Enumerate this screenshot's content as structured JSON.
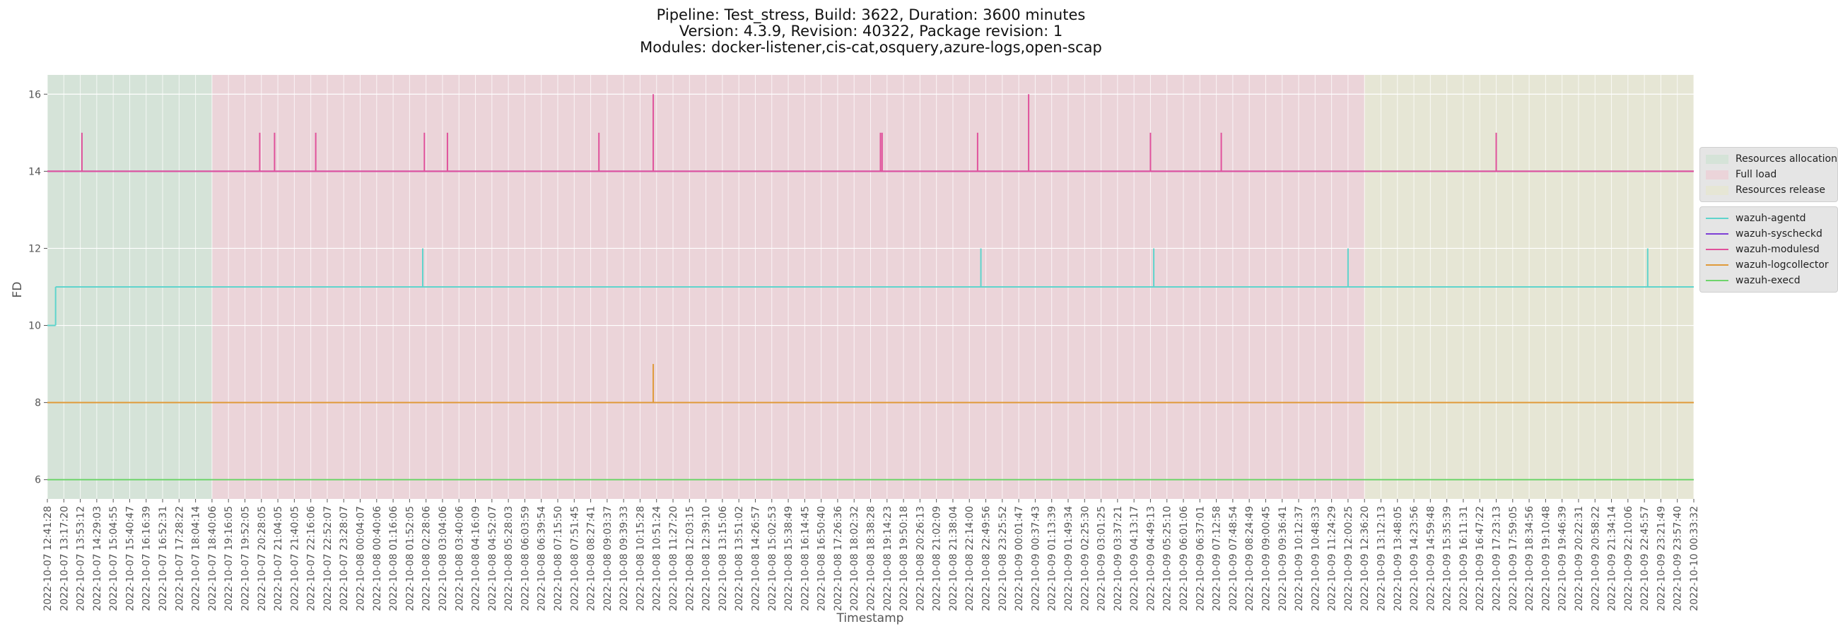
{
  "title_lines": [
    "Pipeline: Test_stress, Build: 3622, Duration: 3600 minutes",
    "Version: 4.3.9, Revision: 40322, Package revision: 1",
    "Modules: docker-listener,cis-cat,osquery,azure-logs,open-scap"
  ],
  "chart_data": {
    "type": "line",
    "title": "Pipeline: Test_stress, Build: 3622, Duration: 3600 minutes\nVersion: 4.3.9, Revision: 40322, Package revision: 1\nModules: docker-listener,cis-cat,osquery,azure-logs,open-scap",
    "xlabel": "Timestamp",
    "ylabel": "FD",
    "ylim": [
      5.5,
      16.5
    ],
    "yticks": [
      6,
      8,
      10,
      12,
      14,
      16
    ],
    "grid": true,
    "legend_placement": "right",
    "x_ticks": [
      "2022-10-07 12:41:28",
      "2022-10-07 13:17:20",
      "2022-10-07 13:53:12",
      "2022-10-07 14:29:03",
      "2022-10-07 15:04:55",
      "2022-10-07 15:40:47",
      "2022-10-07 16:16:39",
      "2022-10-07 16:52:31",
      "2022-10-07 17:28:22",
      "2022-10-07 18:04:14",
      "2022-10-07 18:40:06",
      "2022-10-07 19:16:05",
      "2022-10-07 19:52:05",
      "2022-10-07 20:28:05",
      "2022-10-07 21:04:05",
      "2022-10-07 21:40:05",
      "2022-10-07 22:16:06",
      "2022-10-07 22:52:07",
      "2022-10-07 23:28:07",
      "2022-10-08 00:04:07",
      "2022-10-08 00:40:06",
      "2022-10-08 01:16:06",
      "2022-10-08 01:52:05",
      "2022-10-08 02:28:06",
      "2022-10-08 03:04:06",
      "2022-10-08 03:40:06",
      "2022-10-08 04:16:09",
      "2022-10-08 04:52:07",
      "2022-10-08 05:28:03",
      "2022-10-08 06:03:59",
      "2022-10-08 06:39:54",
      "2022-10-08 07:15:50",
      "2022-10-08 07:51:45",
      "2022-10-08 08:27:41",
      "2022-10-08 09:03:37",
      "2022-10-08 09:39:33",
      "2022-10-08 10:15:28",
      "2022-10-08 10:51:24",
      "2022-10-08 11:27:20",
      "2022-10-08 12:03:15",
      "2022-10-08 12:39:10",
      "2022-10-08 13:15:06",
      "2022-10-08 13:51:02",
      "2022-10-08 14:26:57",
      "2022-10-08 15:02:53",
      "2022-10-08 15:38:49",
      "2022-10-08 16:14:45",
      "2022-10-08 16:50:40",
      "2022-10-08 17:26:36",
      "2022-10-08 18:02:32",
      "2022-10-08 18:38:28",
      "2022-10-08 19:14:23",
      "2022-10-08 19:50:18",
      "2022-10-08 20:26:13",
      "2022-10-08 21:02:09",
      "2022-10-08 21:38:04",
      "2022-10-08 22:14:00",
      "2022-10-08 22:49:56",
      "2022-10-08 23:25:52",
      "2022-10-09 00:01:47",
      "2022-10-09 00:37:43",
      "2022-10-09 01:13:39",
      "2022-10-09 01:49:34",
      "2022-10-09 02:25:30",
      "2022-10-09 03:01:25",
      "2022-10-09 03:37:21",
      "2022-10-09 04:13:17",
      "2022-10-09 04:49:13",
      "2022-10-09 05:25:10",
      "2022-10-09 06:01:06",
      "2022-10-09 06:37:01",
      "2022-10-09 07:12:58",
      "2022-10-09 07:48:54",
      "2022-10-09 08:24:49",
      "2022-10-09 09:00:45",
      "2022-10-09 09:36:41",
      "2022-10-09 10:12:37",
      "2022-10-09 10:48:33",
      "2022-10-09 11:24:29",
      "2022-10-09 12:00:25",
      "2022-10-09 12:36:20",
      "2022-10-09 13:12:13",
      "2022-10-09 13:48:05",
      "2022-10-09 14:23:56",
      "2022-10-09 14:59:48",
      "2022-10-09 15:35:39",
      "2022-10-09 16:11:31",
      "2022-10-09 16:47:22",
      "2022-10-09 17:23:13",
      "2022-10-09 17:59:05",
      "2022-10-09 18:34:56",
      "2022-10-09 19:10:48",
      "2022-10-09 19:46:39",
      "2022-10-09 20:22:31",
      "2022-10-09 20:58:22",
      "2022-10-09 21:34:14",
      "2022-10-09 22:10:06",
      "2022-10-09 22:45:57",
      "2022-10-09 23:21:49",
      "2022-10-09 23:57:40",
      "2022-10-10 00:33:32"
    ],
    "phases": [
      {
        "name": "Resources allocation",
        "start": 0,
        "end": 10,
        "color": "#d5e3d8"
      },
      {
        "name": "Full load",
        "start": 10,
        "end": 80,
        "color": "#ebd4d9"
      },
      {
        "name": "Resources release",
        "start": 80,
        "end": 100,
        "color": "#e6e6d5"
      }
    ],
    "series": [
      {
        "name": "wazuh-agentd",
        "color": "#5fd4cc",
        "baseline": 11,
        "initial": {
          "value": 10,
          "until": 0.5
        },
        "spikes": [
          {
            "x": 22.8,
            "y": 12
          },
          {
            "x": 56.7,
            "y": 12
          },
          {
            "x": 67.2,
            "y": 12
          },
          {
            "x": 79.0,
            "y": 12
          },
          {
            "x": 97.2,
            "y": 12
          }
        ]
      },
      {
        "name": "wazuh-syscheckd",
        "color": "#7e3fd6",
        "baseline": 14,
        "spikes": []
      },
      {
        "name": "wazuh-modulesd",
        "color": "#e0529c",
        "baseline": 14,
        "spikes": [
          {
            "x": 2.1,
            "y": 15
          },
          {
            "x": 12.9,
            "y": 15
          },
          {
            "x": 13.8,
            "y": 15
          },
          {
            "x": 16.3,
            "y": 15
          },
          {
            "x": 22.9,
            "y": 15
          },
          {
            "x": 24.3,
            "y": 15
          },
          {
            "x": 33.5,
            "y": 15
          },
          {
            "x": 36.8,
            "y": 16
          },
          {
            "x": 50.6,
            "y": 15
          },
          {
            "x": 50.7,
            "y": 15
          },
          {
            "x": 56.5,
            "y": 15
          },
          {
            "x": 59.6,
            "y": 16
          },
          {
            "x": 67.0,
            "y": 15
          },
          {
            "x": 71.3,
            "y": 15
          },
          {
            "x": 88.0,
            "y": 15
          }
        ]
      },
      {
        "name": "wazuh-logcollector",
        "color": "#e09a3a",
        "baseline": 8,
        "spikes": [
          {
            "x": 36.8,
            "y": 9
          }
        ]
      },
      {
        "name": "wazuh-execd",
        "color": "#6fd46c",
        "baseline": 6,
        "spikes": []
      }
    ]
  }
}
